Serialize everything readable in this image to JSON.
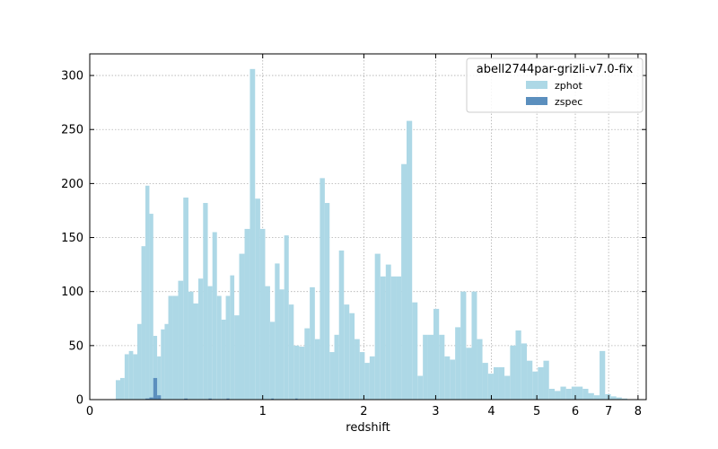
{
  "chart_data": {
    "type": "bar",
    "xlabel": "redshift",
    "ylabel": "",
    "ylim": [
      0,
      320
    ],
    "xscale": "log(1+z)",
    "xlim": [
      0,
      8.3
    ],
    "x_ticks": [
      0,
      1,
      2,
      3,
      4,
      5,
      6,
      7,
      8
    ],
    "y_ticks": [
      0,
      50,
      100,
      150,
      200,
      250,
      300
    ],
    "grid": true,
    "legend": {
      "title": "abell2744par-grizli-v7.0-fix",
      "placement": "top-right"
    },
    "series": [
      {
        "name": "zphot",
        "color": "#add8e6",
        "x": [
          0.12,
          0.14,
          0.16,
          0.18,
          0.2,
          0.22,
          0.24,
          0.26,
          0.28,
          0.3,
          0.32,
          0.34,
          0.36,
          0.38,
          0.41,
          0.44,
          0.47,
          0.5,
          0.53,
          0.56,
          0.59,
          0.62,
          0.65,
          0.68,
          0.71,
          0.74,
          0.77,
          0.8,
          0.84,
          0.88,
          0.92,
          0.96,
          1.0,
          1.04,
          1.08,
          1.12,
          1.16,
          1.2,
          1.24,
          1.29,
          1.34,
          1.39,
          1.44,
          1.49,
          1.54,
          1.59,
          1.64,
          1.69,
          1.74,
          1.8,
          1.86,
          1.92,
          1.98,
          2.04,
          2.1,
          2.17,
          2.24,
          2.31,
          2.38,
          2.45,
          2.52,
          2.6,
          2.68,
          2.76,
          2.84,
          2.92,
          3.01,
          3.1,
          3.19,
          3.28,
          3.37,
          3.47,
          3.57,
          3.67,
          3.77,
          3.88,
          3.99,
          4.1,
          4.21,
          4.33,
          4.45,
          4.57,
          4.7,
          4.83,
          4.96,
          5.09,
          5.23,
          5.37,
          5.52,
          5.67,
          5.82,
          5.97,
          6.13,
          6.29,
          6.46,
          6.63,
          6.8,
          6.98,
          7.16,
          7.34,
          7.53
        ],
        "values": [
          18,
          20,
          42,
          45,
          42,
          70,
          142,
          198,
          172,
          59,
          40,
          65,
          70,
          96,
          96,
          110,
          187,
          100,
          89,
          112,
          182,
          105,
          155,
          96,
          74,
          96,
          115,
          78,
          135,
          158,
          306,
          186,
          158,
          105,
          72,
          126,
          102,
          152,
          88,
          50,
          49,
          66,
          104,
          56,
          205,
          182,
          44,
          60,
          138,
          88,
          80,
          56,
          44,
          34,
          40,
          135,
          114,
          125,
          114,
          114,
          218,
          258,
          90,
          22,
          60,
          60,
          84,
          60,
          40,
          37,
          67,
          100,
          48,
          100,
          56,
          34,
          24,
          30,
          30,
          22,
          50,
          64,
          52,
          36,
          26,
          30,
          36,
          10,
          8,
          12,
          10,
          12,
          12,
          10,
          6,
          4,
          45,
          5,
          3,
          2,
          1
        ]
      },
      {
        "name": "zspec",
        "color": "#5b8fbe",
        "x": [
          0.26,
          0.28,
          0.3,
          0.32,
          0.47,
          0.62,
          0.74,
          1.08,
          1.29
        ],
        "values": [
          1,
          2,
          20,
          4,
          1,
          1,
          1,
          1,
          1
        ]
      }
    ]
  }
}
